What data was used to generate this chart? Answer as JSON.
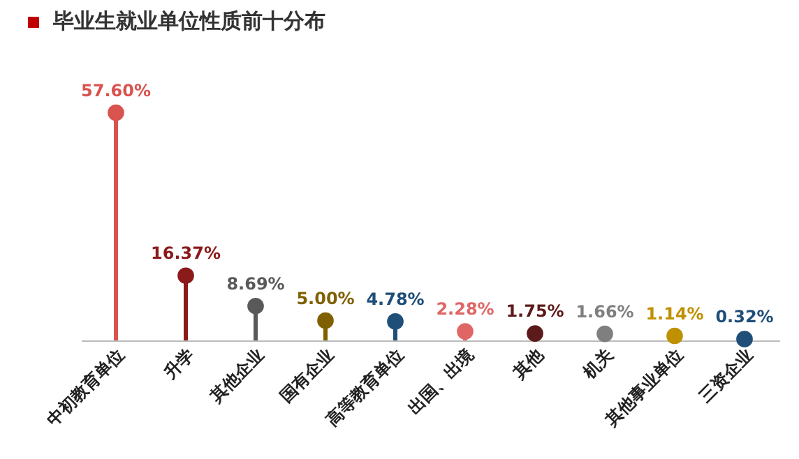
{
  "chart_data": {
    "type": "lollipop",
    "title": "毕业生就业单位性质前十分布",
    "categories": [
      "中初教育单位",
      "升学",
      "其他企业",
      "国有企业",
      "高等教育单位",
      "出国、出境",
      "其他",
      "机关",
      "其他事业单位",
      "三资企业"
    ],
    "values": [
      57.6,
      16.37,
      8.69,
      5.0,
      4.78,
      2.28,
      1.75,
      1.66,
      1.14,
      0.32
    ],
    "value_labels": [
      "57.60%",
      "16.37%",
      "8.69%",
      "5.00%",
      "4.78%",
      "2.28%",
      "1.75%",
      "1.66%",
      "1.14%",
      "0.32%"
    ],
    "colors": [
      "#d9534f",
      "#8b1a1a",
      "#595959",
      "#7f6000",
      "#1f4e79",
      "#e06666",
      "#5c1a1a",
      "#7f7f7f",
      "#bf9000",
      "#1f4e79"
    ],
    "marker": "circle",
    "grid": false
  }
}
